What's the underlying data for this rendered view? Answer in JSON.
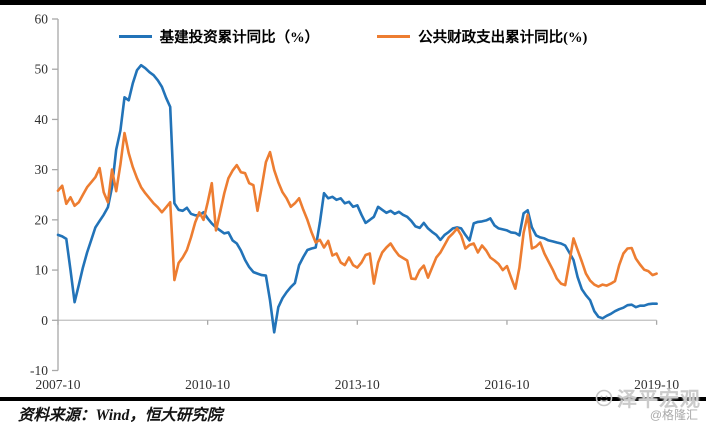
{
  "legend": {
    "series1_label": "基建投资累计同比（%）",
    "series2_label": "公共财政支出累计同比(%)"
  },
  "footer": {
    "source": "资料来源：Wind，恒大研究院"
  },
  "watermark": {
    "brand": "泽平宏观",
    "handle": "@格隆汇"
  },
  "colors": {
    "series1": "#2273b8",
    "series2": "#ED7D31",
    "axis": "#a8a8a8",
    "zero_line": "#bfbfbf",
    "tick_text": "#303030",
    "frame_bars": "#000000"
  },
  "chart_data": {
    "type": "line",
    "title": "",
    "xlabel": "",
    "ylabel": "",
    "ylim": [
      -10,
      60
    ],
    "y_ticks": [
      60,
      50,
      40,
      30,
      20,
      10,
      0,
      -10
    ],
    "grid": "zero-line-only",
    "legend_position": "top",
    "x_monthly_start": "2007-10",
    "x_monthly_end": "2019-10",
    "x_tick_labels": [
      "2007-10",
      "2010-10",
      "2013-10",
      "2016-10",
      "2019-10"
    ],
    "x_tick_month_index": [
      0,
      36,
      72,
      108,
      144
    ],
    "series": [
      {
        "name": "基建投资累计同比（%）",
        "color": "#2273b8",
        "values": [
          17.0,
          16.7,
          16.2,
          10.0,
          3.6,
          7.0,
          10.5,
          13.5,
          16.0,
          18.5,
          19.8,
          21.0,
          22.5,
          26.5,
          34.0,
          37.8,
          44.4,
          43.8,
          47.2,
          49.8,
          50.8,
          50.2,
          49.4,
          48.8,
          47.8,
          46.5,
          44.3,
          42.5,
          23.3,
          22.0,
          21.8,
          22.4,
          21.2,
          20.9,
          20.9,
          21.5,
          20.3,
          19.3,
          18.5,
          17.9,
          17.3,
          17.5,
          15.9,
          15.3,
          13.9,
          12.0,
          10.6,
          9.6,
          9.3,
          9.0,
          8.9,
          4.0,
          -2.4,
          2.6,
          4.4,
          5.6,
          6.6,
          7.4,
          11.0,
          12.6,
          14.0,
          14.3,
          14.5,
          19.5,
          25.3,
          24.3,
          24.6,
          24.0,
          24.3,
          23.3,
          23.6,
          22.6,
          22.9,
          21.0,
          19.4,
          20.0,
          20.6,
          22.6,
          22.0,
          21.4,
          21.8,
          21.2,
          21.6,
          21.0,
          20.6,
          19.8,
          18.7,
          18.4,
          19.4,
          18.3,
          17.6,
          17.0,
          16.0,
          17.0,
          17.6,
          18.3,
          18.5,
          18.3,
          17.0,
          15.9,
          19.3,
          19.6,
          19.7,
          19.9,
          20.3,
          18.9,
          18.3,
          18.1,
          17.9,
          17.5,
          17.4,
          16.9,
          21.3,
          21.9,
          18.5,
          16.9,
          16.5,
          16.3,
          15.9,
          15.7,
          15.5,
          15.3,
          14.9,
          13.5,
          12.0,
          8.6,
          6.2,
          5.0,
          4.0,
          1.8,
          0.7,
          0.4,
          0.9,
          1.3,
          1.8,
          2.2,
          2.5,
          3.0,
          3.1,
          2.6,
          2.9,
          2.9,
          3.2,
          3.3,
          3.3
        ]
      },
      {
        "name": "公共财政支出累计同比(%)",
        "color": "#ED7D31",
        "values": [
          25.8,
          26.8,
          23.2,
          24.5,
          22.8,
          23.5,
          25.0,
          26.5,
          27.5,
          28.5,
          30.3,
          25.5,
          23.5,
          30.0,
          25.7,
          31.0,
          37.3,
          33.3,
          30.5,
          28.3,
          26.5,
          25.3,
          24.3,
          23.3,
          22.5,
          21.5,
          22.5,
          23.5,
          8.0,
          11.4,
          12.5,
          14.0,
          16.5,
          19.5,
          21.5,
          20.0,
          23.5,
          27.3,
          17.9,
          21.5,
          25.3,
          28.3,
          29.8,
          30.9,
          29.5,
          29.3,
          27.3,
          26.9,
          21.8,
          26.5,
          31.5,
          33.5,
          29.9,
          27.5,
          25.5,
          24.3,
          22.6,
          23.3,
          24.3,
          22.0,
          20.0,
          17.5,
          15.5,
          16.0,
          14.5,
          15.8,
          12.9,
          13.3,
          11.5,
          11.0,
          12.5,
          11.0,
          10.5,
          11.5,
          13.0,
          13.3,
          7.3,
          11.5,
          13.5,
          14.5,
          15.3,
          14.0,
          12.9,
          12.4,
          11.9,
          8.3,
          8.2,
          10.0,
          10.9,
          8.5,
          10.5,
          12.5,
          13.5,
          15.0,
          16.5,
          17.3,
          18.3,
          16.9,
          14.3,
          15.0,
          15.3,
          13.5,
          14.9,
          13.9,
          12.5,
          11.9,
          11.2,
          10.0,
          10.8,
          8.5,
          6.3,
          10.5,
          17.4,
          21.0,
          14.3,
          14.7,
          15.5,
          13.3,
          11.7,
          10.1,
          8.3,
          7.3,
          7.0,
          11.5,
          16.3,
          14.0,
          11.7,
          9.3,
          7.9,
          7.1,
          6.7,
          7.1,
          6.9,
          7.3,
          7.8,
          11.0,
          13.3,
          14.3,
          14.4,
          12.3,
          11.1,
          10.1,
          9.8,
          9.0,
          9.3
        ]
      }
    ]
  }
}
